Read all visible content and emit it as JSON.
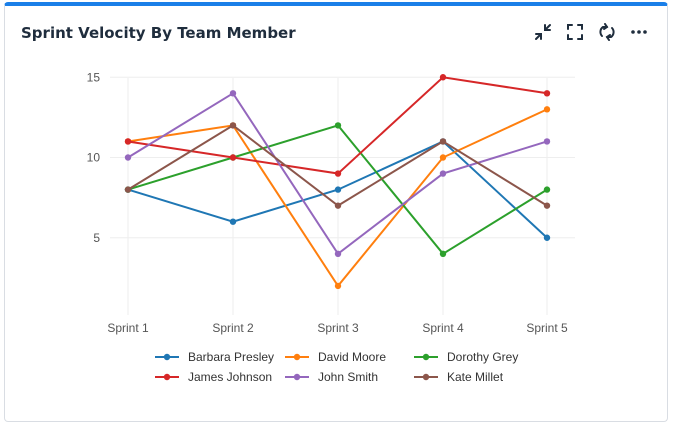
{
  "widget": {
    "title": "Sprint Velocity By Team Member",
    "icons": [
      "collapse-icon",
      "fullscreen-icon",
      "refresh-icon",
      "more-icon"
    ]
  },
  "chart_data": {
    "type": "line",
    "title": "Sprint Velocity By Team Member",
    "xlabel": "",
    "ylabel": "",
    "categories": [
      "Sprint 1",
      "Sprint 2",
      "Sprint 3",
      "Sprint 4",
      "Sprint 5"
    ],
    "y_ticks": [
      5,
      10,
      15
    ],
    "ylim": [
      0.5,
      16.2
    ],
    "grid": true,
    "legend_position": "bottom",
    "series": [
      {
        "name": "Barbara Presley",
        "color": "#1f77b4",
        "values": [
          8,
          6,
          8,
          11,
          5
        ]
      },
      {
        "name": "David Moore",
        "color": "#ff7f0e",
        "values": [
          11,
          12,
          2,
          10,
          13
        ]
      },
      {
        "name": "Dorothy Grey",
        "color": "#2ca02c",
        "values": [
          8,
          10,
          12,
          4,
          8
        ]
      },
      {
        "name": "James Johnson",
        "color": "#d62728",
        "values": [
          11,
          10,
          9,
          15,
          14
        ]
      },
      {
        "name": "John Smith",
        "color": "#9467bd",
        "values": [
          10,
          14,
          4,
          9,
          11
        ]
      },
      {
        "name": "Kate Millet",
        "color": "#8c564b",
        "values": [
          8,
          12,
          7,
          11,
          7
        ]
      }
    ]
  }
}
